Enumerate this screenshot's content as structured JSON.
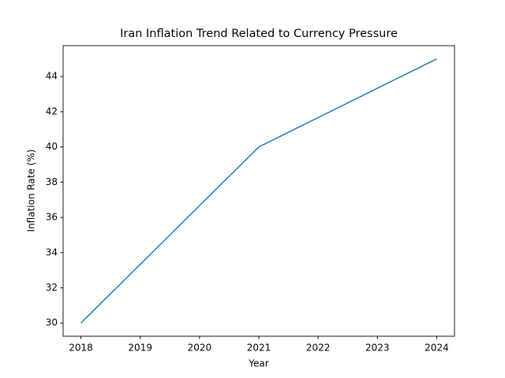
{
  "chart_data": {
    "type": "line",
    "title": "Iran Inflation Trend Related to Currency Pressure",
    "x_label": "Year",
    "y_label": "Inflation Rate (%)",
    "x": [
      2018,
      2021,
      2024
    ],
    "series": [
      {
        "name": "Inflation Rate",
        "color": "#1f77b4",
        "values": [
          30,
          40,
          45
        ]
      }
    ],
    "xlim": [
      2017.7,
      2024.3
    ],
    "xticks": [
      2018,
      2019,
      2020,
      2021,
      2022,
      2023,
      2024
    ],
    "ylim": [
      29.25,
      45.75
    ],
    "yticks": [
      30,
      32,
      34,
      36,
      38,
      40,
      42,
      44
    ],
    "grid": false
  }
}
